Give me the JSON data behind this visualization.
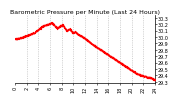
{
  "title": "Barometric Pressure per Minute (Last 24 Hours)",
  "bg_color": "#ffffff",
  "plot_bg": "#ffffff",
  "line_color": "#ff0000",
  "grid_color": "#b0b0b0",
  "ylim": [
    29.28,
    30.35
  ],
  "yticks": [
    29.3,
    29.4,
    29.5,
    29.6,
    29.7,
    29.8,
    29.9,
    30.0,
    30.1,
    30.2,
    30.3
  ],
  "ytick_labels": [
    "29.3",
    "29.4",
    "29.5",
    "29.6",
    "29.7",
    "29.8",
    "29.9",
    "30.0",
    "30.1",
    "30.2",
    "30.3"
  ],
  "xlim": [
    0,
    1440
  ],
  "xtick_positions": [
    0,
    120,
    240,
    360,
    480,
    600,
    720,
    840,
    960,
    1080,
    1200,
    1320,
    1440
  ],
  "xtick_labels": [
    "0",
    "2",
    "4",
    "6",
    "8",
    "10",
    "12",
    "14",
    "16",
    "18",
    "20",
    "22",
    "24"
  ],
  "marker_size": 0.8,
  "title_fontsize": 4.5,
  "tick_fontsize": 3.5,
  "trend_segments": [
    [
      0,
      29.97
    ],
    [
      60,
      29.99
    ],
    [
      150,
      30.04
    ],
    [
      200,
      30.07
    ],
    [
      280,
      30.17
    ],
    [
      340,
      30.2
    ],
    [
      380,
      30.22
    ],
    [
      430,
      30.14
    ],
    [
      470,
      30.18
    ],
    [
      490,
      30.19
    ],
    [
      530,
      30.1
    ],
    [
      560,
      30.13
    ],
    [
      590,
      30.07
    ],
    [
      620,
      30.08
    ],
    [
      660,
      30.03
    ],
    [
      700,
      30.0
    ],
    [
      750,
      29.94
    ],
    [
      800,
      29.88
    ],
    [
      860,
      29.82
    ],
    [
      900,
      29.78
    ],
    [
      950,
      29.73
    ],
    [
      1000,
      29.68
    ],
    [
      1050,
      29.63
    ],
    [
      1100,
      29.58
    ],
    [
      1150,
      29.53
    ],
    [
      1200,
      29.48
    ],
    [
      1250,
      29.43
    ],
    [
      1300,
      29.4
    ],
    [
      1350,
      29.38
    ],
    [
      1400,
      29.36
    ],
    [
      1440,
      29.33
    ]
  ],
  "noise_seed": 42,
  "noise_std": 0.005
}
